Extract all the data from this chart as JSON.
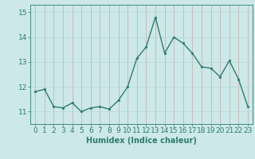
{
  "x": [
    0,
    1,
    2,
    3,
    4,
    5,
    6,
    7,
    8,
    9,
    10,
    11,
    12,
    13,
    14,
    15,
    16,
    17,
    18,
    19,
    20,
    21,
    22,
    23
  ],
  "y": [
    11.8,
    11.9,
    11.2,
    11.15,
    11.35,
    11.0,
    11.15,
    11.2,
    11.1,
    11.45,
    12.0,
    13.15,
    13.6,
    14.8,
    13.35,
    14.0,
    13.75,
    13.35,
    12.8,
    12.75,
    12.4,
    13.05,
    12.3,
    11.2
  ],
  "line_color": "#2e7d6e",
  "marker": "o",
  "marker_size": 2.0,
  "linewidth": 1.0,
  "xlabel": "Humidex (Indice chaleur)",
  "ylim": [
    10.5,
    15.3
  ],
  "xlim": [
    -0.5,
    23.5
  ],
  "yticks": [
    11,
    12,
    13,
    14,
    15
  ],
  "xticks": [
    0,
    1,
    2,
    3,
    4,
    5,
    6,
    7,
    8,
    9,
    10,
    11,
    12,
    13,
    14,
    15,
    16,
    17,
    18,
    19,
    20,
    21,
    22,
    23
  ],
  "bg_color": "#cce8e8",
  "vgrid_color": "#c8a8a8",
  "hgrid_color": "#b8d8d8",
  "xlabel_fontsize": 7,
  "tick_fontsize": 6.5
}
